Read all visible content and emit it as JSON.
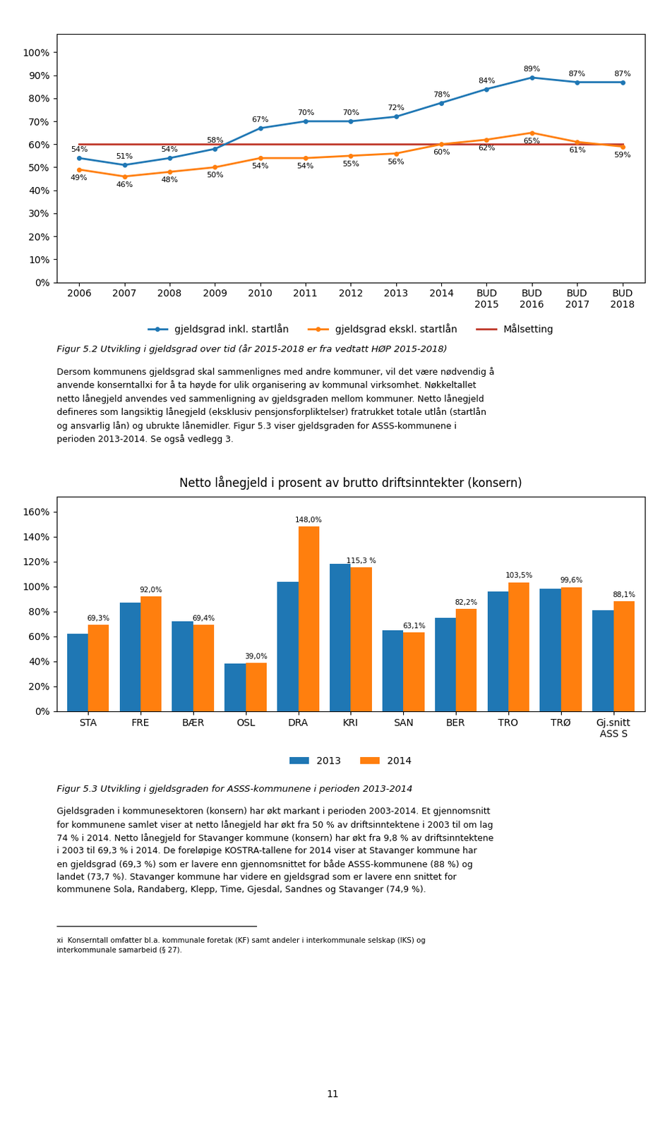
{
  "chart_data": [
    {
      "type": "line",
      "categories": [
        "2006",
        "2007",
        "2008",
        "2009",
        "2010",
        "2011",
        "2012",
        "2013",
        "2014",
        "BUD\n2015",
        "BUD\n2016",
        "BUD\n2017",
        "BUD\n2018"
      ],
      "series": [
        {
          "name": "gjeldsgrad inkl. startlån",
          "marker": "circle",
          "values": [
            54,
            51,
            54,
            58,
            67,
            70,
            70,
            72,
            78,
            84,
            89,
            87,
            87
          ],
          "value_labels": [
            "54%",
            "51%",
            "54%",
            "58%",
            "67%",
            "70%",
            "70%",
            "72%",
            "78%",
            "84%",
            "89%",
            "87%",
            "87%"
          ]
        },
        {
          "name": "gjeldsgrad ekskl. startlån",
          "marker": "circle",
          "values": [
            49,
            46,
            48,
            50,
            54,
            54,
            55,
            56,
            60,
            62,
            65,
            61,
            59
          ],
          "value_labels": [
            "49%",
            "46%",
            "48%",
            "50%",
            "54%",
            "54%",
            "55%",
            "56%",
            "60%",
            "62%",
            "65%",
            "61%",
            "59%"
          ]
        },
        {
          "name": "Målsetting",
          "color": "#C0392B",
          "values": [
            60,
            60,
            60,
            60,
            60,
            60,
            60,
            60,
            60,
            60,
            60,
            60,
            60
          ]
        }
      ],
      "ylim": [
        0,
        108
      ],
      "yticks": [
        {
          "value": 0,
          "label": "0%"
        },
        {
          "value": 10,
          "label": "10%"
        },
        {
          "value": 20,
          "label": "20%"
        },
        {
          "value": 30,
          "label": "30%"
        },
        {
          "value": 40,
          "label": "40%"
        },
        {
          "value": 50,
          "label": "50%"
        },
        {
          "value": 60,
          "label": "60%"
        },
        {
          "value": 70,
          "label": "70%"
        },
        {
          "value": 80,
          "label": "80%"
        },
        {
          "value": 90,
          "label": "90%"
        },
        {
          "value": 100,
          "label": "100%"
        }
      ],
      "data_labels": true,
      "legend": "upper center",
      "annotations": [
        "Figur 5.2 Utvikling i gjeldsgrad over tid (år 2015-2018 er fra vedtatt HØP 2015-2018)",
        "Dersom kommunens gjeldsgrad skal sammenlignes med andre kommuner, vil det være nødvendig å\nanvende konserntallxi for å ta høyde for ulik organisering av kommunal virksomhet. Nøkkeltallet\nnetto lånegjeld anvendes ved sammenligning av gjeldsgraden mellom kommuner. Netto lånegjeld\ndefineres som langsiktig lånegjeld (eksklusiv pensjonsforpliktelser) fratrukket totale utlån (startlån\nog ansvarlig lån) og ubrukte lånemidler. Figur 5.3 viser gjeldsgraden for ASSS-kommunene i\nperioden 2013-2014. Se også vedlegg 3."
      ]
    },
    {
      "type": "bar",
      "title": "Netto lånegjeld i prosent av brutto driftsinntekter (konsern)",
      "categories": [
        "STA",
        "FRE",
        "BÆR",
        "OSL",
        "DRA",
        "KRI",
        "SAN",
        "BER",
        "TRO",
        "TRØ",
        "Gj.snitt\nASS S"
      ],
      "series": [
        {
          "name": "2013",
          "values": [
            62.0,
            87.0,
            72.0,
            38.0,
            104.0,
            118.0,
            65.0,
            75.0,
            96.0,
            98.0,
            81.0
          ]
        },
        {
          "name": "2014",
          "values": [
            69.3,
            92.0,
            69.4,
            39.0,
            148.0,
            115.3,
            63.1,
            82.2,
            103.5,
            99.6,
            88.1
          ],
          "value_labels": [
            "69,3%",
            "92,0%",
            "69,4%",
            "39,0%",
            "148,0%",
            "115,3 %",
            "63,1%",
            "82,2%",
            "103,5%",
            "99,6%",
            "88,1%"
          ]
        }
      ],
      "ylim": [
        0,
        172
      ],
      "yticks": [
        {
          "value": 0,
          "label": "0%"
        },
        {
          "value": 20,
          "label": "20%"
        },
        {
          "value": 40,
          "label": "40%"
        },
        {
          "value": 60,
          "label": "60%"
        },
        {
          "value": 80,
          "label": "80%"
        },
        {
          "value": 100,
          "label": "100%"
        },
        {
          "value": 120,
          "label": "120%"
        },
        {
          "value": 140,
          "label": "140%"
        },
        {
          "value": 160,
          "label": "160%"
        }
      ],
      "data_labels": true,
      "legend": "upper center",
      "annotations": [
        "Figur 5.3 Utvikling i gjeldsgraden for ASSS-kommunene i perioden 2013-2014",
        "Gjeldsgraden i kommunesektoren (konsern) har økt markant i perioden 2003-2014. Et gjennomsnitt\nfor kommunene samlet viser at netto lånegjeld har økt fra 50 % av driftsinntektene i 2003 til om lag\n74 % i 2014. Netto lånegjeld for Stavanger kommune (konsern) har økt fra 9,8 % av driftsinntektene\ni 2003 til 69,3 % i 2014. De foreløpige KOSTRA-tallene for 2014 viser at Stavanger kommune har\nen gjeldsgrad (69,3 %) som er lavere enn gjennomsnittet for både ASSS-kommunene (88 %) og\nlandet (73,7 %). Stavanger kommune har videre en gjeldsgrad som er lavere enn snittet for\nkommunene Sola, Randaberg, Klepp, Time, Gjesdal, Sandnes og Stavanger (74,9 %).",
        "xi  Konserntall omfatter bl.a. kommunale foretak (KF) samt andeler i interkommunale selskap (IKS) og\ninterkommunale samarbeid (§ 27).",
        "11"
      ]
    }
  ]
}
